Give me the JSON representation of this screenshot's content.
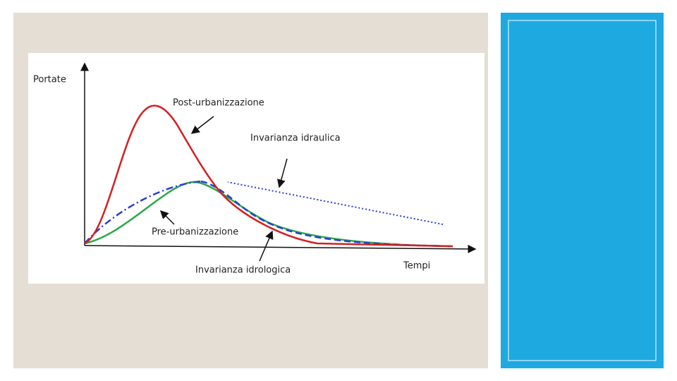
{
  "diagram": {
    "y_axis_label": "Portate",
    "x_axis_label": "Tempi",
    "curves": [
      {
        "label": "Post-urbanizzazione"
      },
      {
        "label": "Invarianza idraulica"
      },
      {
        "label": "Pre-urbanizzazione"
      },
      {
        "label": "Invarianza idrologica"
      }
    ]
  }
}
